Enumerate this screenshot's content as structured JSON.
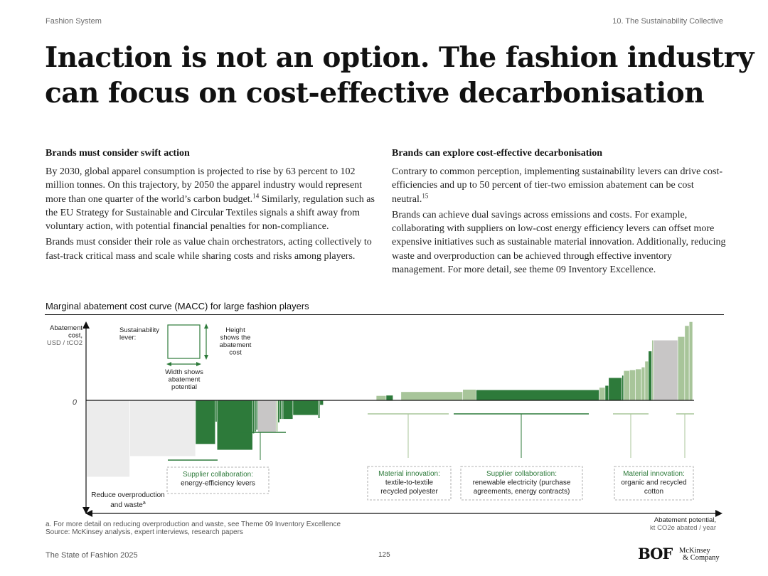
{
  "header": {
    "left": "Fashion System",
    "right": "10. The Sustainability Collective"
  },
  "headline": {
    "line1": "Inaction is not an option. The fashion industry",
    "line2": "can focus on cost-effective decarbonisation"
  },
  "left_column": {
    "heading": "Brands must consider swift action",
    "p1_text": "By 2030, global apparel consumption is projected to rise by 63 percent to 102 million tonnes. On this trajectory, by 2050 the apparel industry would represent more than one quarter of the world’s carbon budget.",
    "p1_sup": "14",
    "p1_cont": " Similarly, regulation such as the EU Strategy for Sustainable and Circular Textiles signals a shift away from voluntary action, with potential financial penalties for non-compliance.",
    "p2": "Brands must consider their role as value chain orchestrators, acting collectively to fast-track critical mass and scale while sharing costs and risks among players."
  },
  "right_column": {
    "heading": "Brands can explore cost-effective decarbonisation",
    "p1_text": "Contrary to common perception, implementing sustainability levers can drive cost-efficiencies and up to 50 percent of tier-two emission abatement can be cost neutral.",
    "p1_sup": "15",
    "p2": "Brands can achieve dual savings across emissions and costs. For example, collaborating with suppliers on low-cost energy efficiency levers can offset more expensive initiatives such as sustainable material innovation. Additionally, reducing waste and overproduction can be achieved through effective inventory management. For more detail, see theme 09 Inventory Excellence."
  },
  "chart_title": "Marginal abatement cost curve (MACC) for large fashion players",
  "chart_data": {
    "type": "bar",
    "title": "Marginal abatement cost curve (MACC) for large fashion players",
    "ylabel": [
      "Abatement",
      "cost,",
      "USD / tCO2"
    ],
    "xlabel": [
      "Abatement potential,",
      "kt CO2e abated / year"
    ],
    "zero_label": "0",
    "note": "No numeric tick values are printed; bar heights/widths are relative (0-100 scale).",
    "colors": {
      "light": "#a8c59a",
      "dark": "#2d7a3a",
      "grey": "#c8c6c6",
      "pale": "#ececec"
    },
    "bars": [
      {
        "width": 8.7,
        "cost": -19.6,
        "tone": "pale"
      },
      {
        "width": 13.3,
        "cost": -14.3,
        "tone": "pale"
      },
      {
        "width": 4.0,
        "cost": -11.2,
        "tone": "dark"
      },
      {
        "width": 0.35,
        "cost": -5.5,
        "tone": "dark"
      },
      {
        "width": 7.2,
        "cost": -12.7,
        "tone": "dark"
      },
      {
        "width": 0.35,
        "cost": -8.5,
        "tone": "dark"
      },
      {
        "width": 0.35,
        "cost": -8.0,
        "tone": "dark"
      },
      {
        "width": 0.35,
        "cost": -7.6,
        "tone": "dark"
      },
      {
        "width": 3.7,
        "cost": -8.1,
        "tone": "grey"
      },
      {
        "width": 0.35,
        "cost": -8.0,
        "tone": "light"
      },
      {
        "width": 0.35,
        "cost": -5.7,
        "tone": "dark"
      },
      {
        "width": 0.35,
        "cost": -4.8,
        "tone": "dark"
      },
      {
        "width": 0.35,
        "cost": -4.8,
        "tone": "dark"
      },
      {
        "width": 2.0,
        "cost": -4.8,
        "tone": "dark"
      },
      {
        "width": 5.1,
        "cost": -3.8,
        "tone": "dark"
      },
      {
        "width": 0.35,
        "cost": -4.6,
        "tone": "dark"
      },
      {
        "width": 0.7,
        "cost": -1.2,
        "tone": "dark"
      },
      {
        "width": 10.7,
        "cost": 0,
        "tone": "light"
      },
      {
        "width": 2.0,
        "cost": 1.2,
        "tone": "light"
      },
      {
        "width": 1.4,
        "cost": 1.3,
        "tone": "dark"
      },
      {
        "width": 1.6,
        "cost": 0,
        "tone": "light"
      },
      {
        "width": 12.5,
        "cost": 2.2,
        "tone": "light"
      },
      {
        "width": 2.7,
        "cost": 2.8,
        "tone": "light"
      },
      {
        "width": 24.9,
        "cost": 2.7,
        "tone": "dark"
      },
      {
        "width": 1.2,
        "cost": 3.3,
        "tone": "light"
      },
      {
        "width": 0.7,
        "cost": 3.8,
        "tone": "dark"
      },
      {
        "width": 2.7,
        "cost": 5.8,
        "tone": "dark"
      },
      {
        "width": 0.35,
        "cost": 6.4,
        "tone": "dark"
      },
      {
        "width": 1.2,
        "cost": 7.6,
        "tone": "light"
      },
      {
        "width": 1.2,
        "cost": 7.8,
        "tone": "light"
      },
      {
        "width": 1.2,
        "cost": 8.0,
        "tone": "light"
      },
      {
        "width": 0.7,
        "cost": 8.5,
        "tone": "light"
      },
      {
        "width": 0.7,
        "cost": 10.0,
        "tone": "light"
      },
      {
        "width": 0.7,
        "cost": 12.6,
        "tone": "dark"
      },
      {
        "width": 0.35,
        "cost": 15.4,
        "tone": "light"
      },
      {
        "width": 4.9,
        "cost": 15.4,
        "tone": "grey"
      },
      {
        "width": 1.4,
        "cost": 16.3,
        "tone": "light"
      },
      {
        "width": 0.9,
        "cost": 19.1,
        "tone": "light"
      },
      {
        "width": 0.7,
        "cost": 20.1,
        "tone": "light"
      }
    ],
    "legend": {
      "lever_label": "Sustainability lever:",
      "height_label": [
        "Height",
        "shows the",
        "abatement",
        "cost"
      ],
      "width_label": [
        "Width shows",
        "abatement",
        "potential"
      ]
    },
    "annotations": [
      {
        "lines": [
          "Reduce overproduction",
          "and waste"
        ],
        "sup": "a",
        "boxed": false
      },
      {
        "lines": [
          "Supplier collaboration:",
          "energy-efficiency levers"
        ],
        "boxed": true
      },
      {
        "lines": [
          "Material innovation:",
          "textile-to-textile",
          "recycled polyester"
        ],
        "boxed": true
      },
      {
        "lines": [
          "Supplier collaboration:",
          "renewable electricity (purchase",
          "agreements, energy contracts)"
        ],
        "boxed": true
      },
      {
        "lines": [
          "Material innovation:",
          "organic and recycled",
          "cotton"
        ],
        "boxed": true
      }
    ]
  },
  "notes": {
    "footnote": "a. For more detail on reducing overproduction and waste, see Theme 09 Inventory Excellence",
    "source": "Source: McKinsey analysis, expert interviews, research papers"
  },
  "footer": {
    "left": "The State of Fashion 2025",
    "page": "125",
    "logo_bof": "BOF",
    "logo_mck_1": "McKinsey",
    "logo_mck_2": "& Company"
  }
}
